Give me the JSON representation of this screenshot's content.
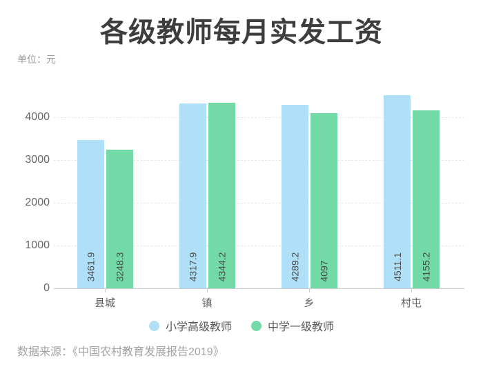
{
  "title": "各级教师每月实发工资",
  "unit_label": "单位：元",
  "source": "数据来源：《中国农村教育发展报告2019》",
  "chart_data": {
    "type": "bar",
    "title": "各级教师每月实发工资",
    "unit": "元",
    "categories": [
      "县城",
      "镇",
      "乡",
      "村屯"
    ],
    "series": [
      {
        "name": "小学高级教师",
        "color": "#b0e0f7",
        "values": [
          3461.9,
          4317.9,
          4289.2,
          4511.1
        ]
      },
      {
        "name": "中学一级教师",
        "color": "#72d9a7",
        "values": [
          3248.3,
          4344.2,
          4097,
          4155.2
        ]
      }
    ],
    "yticks": [
      0,
      1000,
      2000,
      3000,
      4000
    ],
    "ylim": [
      0,
      4645
    ],
    "grid": "horizontal dashed",
    "legend_position": "bottom",
    "value_label_style": "inside bar bottom, rotated 90 degrees",
    "axis_color": "#cccccc",
    "gridline_color": "#e9e6e6"
  }
}
